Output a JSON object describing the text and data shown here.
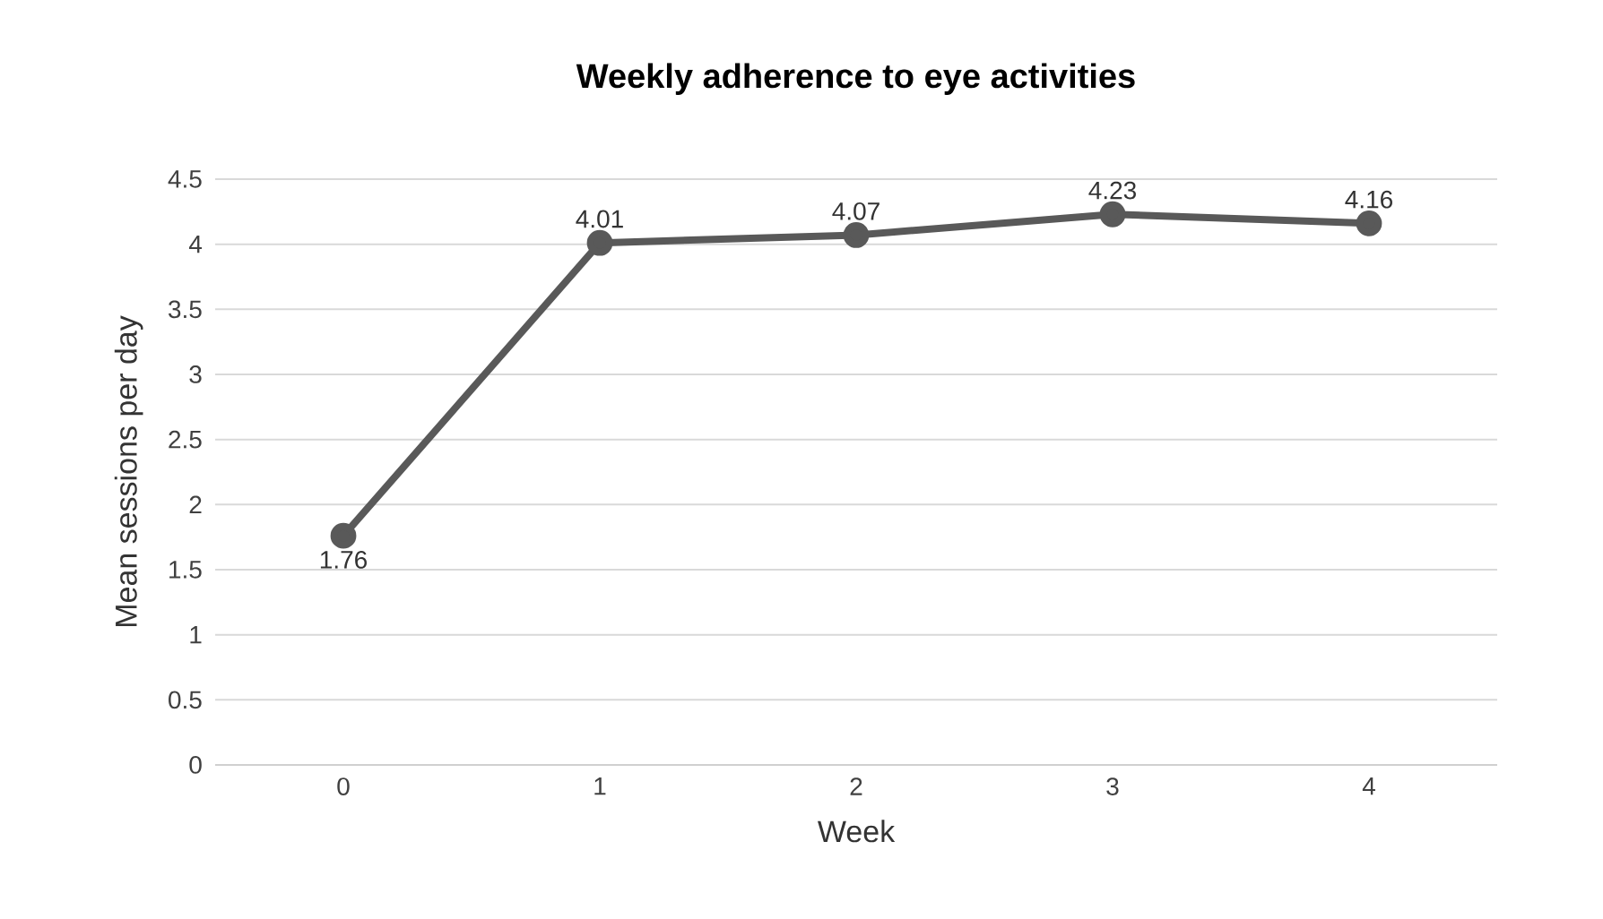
{
  "chart_data": {
    "type": "line",
    "title": "Weekly adherence to eye activities",
    "xlabel": "Week",
    "ylabel": "Mean sessions per day",
    "categories": [
      "0",
      "1",
      "2",
      "3",
      "4"
    ],
    "values": [
      1.76,
      4.01,
      4.07,
      4.23,
      4.16
    ],
    "color": "#595959",
    "marker": "circle",
    "data_labels": true,
    "grid": "y",
    "ylim": [
      0,
      4.5
    ],
    "yticks": [
      0,
      0.5,
      1,
      1.5,
      2,
      2.5,
      3,
      3.5,
      4,
      4.5
    ]
  }
}
